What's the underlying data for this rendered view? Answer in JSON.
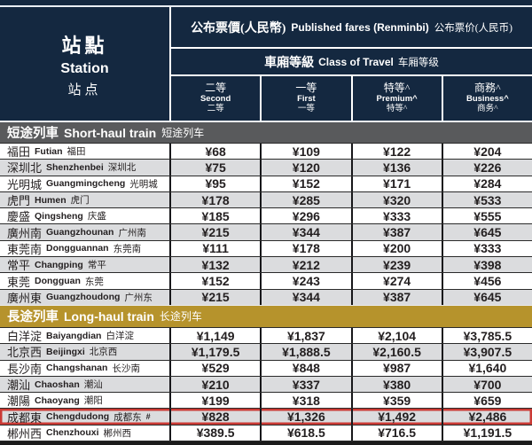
{
  "colors": {
    "header_navy": "#142840",
    "section_gray": "#595a5c",
    "section_gold": "#b6932c",
    "row_stripe": "#dbdcde",
    "highlight_red": "#cb3a35",
    "text_dark": "#231f20"
  },
  "table": {
    "station_header": {
      "zh_hant": "站點",
      "en": "Station",
      "zh_hans": "站点"
    },
    "fares_header": {
      "zh_hant": "公布票價(人民幣)",
      "en": "Published fares (Renminbi)",
      "zh_hans": "公布票价(人民币)"
    },
    "class_header": {
      "zh_hant": "車廂等級",
      "en": "Class of Travel",
      "zh_hans": "车厢等级"
    },
    "classes": [
      {
        "zh_hant": "二等",
        "en": "Second",
        "zh_hans": "二等"
      },
      {
        "zh_hant": "一等",
        "en": "First",
        "zh_hans": "一等"
      },
      {
        "zh_hant": "特等^",
        "en": "Premium^",
        "zh_hans": "特等^"
      },
      {
        "zh_hant": "商務^",
        "en": "Business^",
        "zh_hans": "商务^"
      }
    ],
    "sections": [
      {
        "style": "gray",
        "title": {
          "zh_hant": "短途列車",
          "en": "Short-haul train",
          "zh_hans": "短途列车"
        },
        "rows": [
          {
            "station": {
              "zh_hant": "福田",
              "en": "Futian",
              "zh_hans": "福田"
            },
            "fares": [
              "¥68",
              "¥109",
              "¥122",
              "¥204"
            ]
          },
          {
            "station": {
              "zh_hant": "深圳北",
              "en": "Shenzhenbei",
              "zh_hans": "深圳北"
            },
            "fares": [
              "¥75",
              "¥120",
              "¥136",
              "¥226"
            ]
          },
          {
            "station": {
              "zh_hant": "光明城",
              "en": "Guangmingcheng",
              "zh_hans": "光明城"
            },
            "fares": [
              "¥95",
              "¥152",
              "¥171",
              "¥284"
            ]
          },
          {
            "station": {
              "zh_hant": "虎門",
              "en": "Humen",
              "zh_hans": "虎门"
            },
            "fares": [
              "¥178",
              "¥285",
              "¥320",
              "¥533"
            ]
          },
          {
            "station": {
              "zh_hant": "慶盛",
              "en": "Qingsheng",
              "zh_hans": "庆盛"
            },
            "fares": [
              "¥185",
              "¥296",
              "¥333",
              "¥555"
            ]
          },
          {
            "station": {
              "zh_hant": "廣州南",
              "en": "Guangzhounan",
              "zh_hans": "广州南"
            },
            "fares": [
              "¥215",
              "¥344",
              "¥387",
              "¥645"
            ]
          },
          {
            "station": {
              "zh_hant": "東莞南",
              "en": "Dongguannan",
              "zh_hans": "东莞南"
            },
            "fares": [
              "¥111",
              "¥178",
              "¥200",
              "¥333"
            ]
          },
          {
            "station": {
              "zh_hant": "常平",
              "en": "Changping",
              "zh_hans": "常平"
            },
            "fares": [
              "¥132",
              "¥212",
              "¥239",
              "¥398"
            ]
          },
          {
            "station": {
              "zh_hant": "東莞",
              "en": "Dongguan",
              "zh_hans": "东莞"
            },
            "fares": [
              "¥152",
              "¥243",
              "¥274",
              "¥456"
            ]
          },
          {
            "station": {
              "zh_hant": "廣州東",
              "en": "Guangzhoudong",
              "zh_hans": "广州东"
            },
            "fares": [
              "¥215",
              "¥344",
              "¥387",
              "¥645"
            ]
          }
        ]
      },
      {
        "style": "gold",
        "title": {
          "zh_hant": "長途列車",
          "en": "Long-haul train",
          "zh_hans": "长途列车"
        },
        "rows": [
          {
            "station": {
              "zh_hant": "白洋淀",
              "en": "Baiyangdian",
              "zh_hans": "白洋淀"
            },
            "fares": [
              "¥1,149",
              "¥1,837",
              "¥2,104",
              "¥3,785.5"
            ]
          },
          {
            "station": {
              "zh_hant": "北京西",
              "en": "Beijingxi",
              "zh_hans": "北京西"
            },
            "fares": [
              "¥1,179.5",
              "¥1,888.5",
              "¥2,160.5",
              "¥3,907.5"
            ]
          },
          {
            "station": {
              "zh_hant": "長沙南",
              "en": "Changshanan",
              "zh_hans": "长沙南"
            },
            "fares": [
              "¥529",
              "¥848",
              "¥987",
              "¥1,640"
            ]
          },
          {
            "station": {
              "zh_hant": "潮汕",
              "en": "Chaoshan",
              "zh_hans": "潮汕"
            },
            "fares": [
              "¥210",
              "¥337",
              "¥380",
              "¥700"
            ]
          },
          {
            "station": {
              "zh_hant": "潮陽",
              "en": "Chaoyang",
              "zh_hans": "潮阳"
            },
            "fares": [
              "¥199",
              "¥318",
              "¥359",
              "¥659"
            ]
          },
          {
            "station": {
              "zh_hant": "成都東",
              "en": "Chengdudong",
              "zh_hans": "成都东",
              "suffix": "#"
            },
            "highlighted": true,
            "fares": [
              "¥828",
              "¥1,326",
              "¥1,492",
              "¥2,486"
            ]
          },
          {
            "station": {
              "zh_hant": "郴州西",
              "en": "Chenzhouxi",
              "zh_hans": "郴州西"
            },
            "fares": [
              "¥389.5",
              "¥618.5",
              "¥716.5",
              "¥1,191.5"
            ]
          }
        ]
      }
    ]
  }
}
